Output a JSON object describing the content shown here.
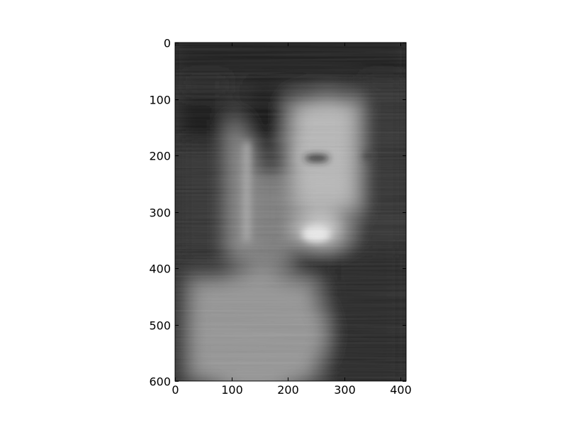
{
  "chart_data": {
    "type": "heatmap",
    "title": "",
    "xlabel": "",
    "ylabel": "",
    "colormap": "gray",
    "content": "grayscale image",
    "xlim": [
      0,
      410
    ],
    "ylim": [
      600,
      0
    ],
    "x_ticks": [
      0,
      100,
      200,
      300,
      400
    ],
    "y_ticks": [
      0,
      100,
      200,
      300,
      400,
      500,
      600
    ],
    "x_tick_labels": [
      "0",
      "100",
      "200",
      "300",
      "400"
    ],
    "y_tick_labels": [
      "0",
      "100",
      "200",
      "300",
      "400",
      "500",
      "600"
    ],
    "grid": false,
    "legend": "none"
  }
}
